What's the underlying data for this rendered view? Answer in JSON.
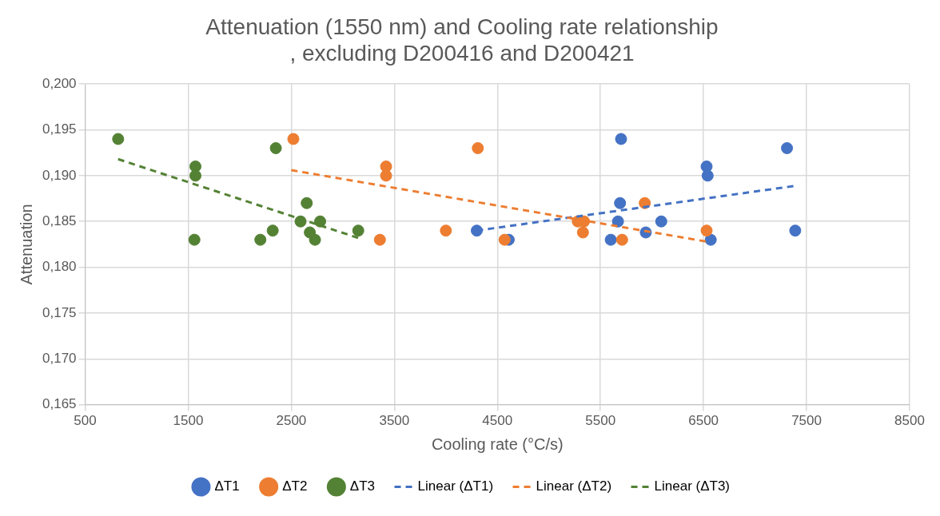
{
  "chart_data": {
    "type": "scatter",
    "title": "Attenuation (1550 nm) and Cooling rate relationship\n, excluding D200416 and D200421",
    "xlabel": "Cooling rate (°C/s)",
    "ylabel": "Attenuation",
    "xlim": [
      500,
      8500
    ],
    "xticks": [
      500,
      1500,
      2500,
      3500,
      4500,
      5500,
      6500,
      7500,
      8500
    ],
    "ylim": [
      0.165,
      0.2
    ],
    "yticks": [
      {
        "value": 0.165,
        "label": "0,165"
      },
      {
        "value": 0.17,
        "label": "0,170"
      },
      {
        "value": 0.175,
        "label": "0,175"
      },
      {
        "value": 0.18,
        "label": "0,180"
      },
      {
        "value": 0.185,
        "label": "0,185"
      },
      {
        "value": 0.19,
        "label": "0,190"
      },
      {
        "value": 0.195,
        "label": "0,195"
      },
      {
        "value": 0.2,
        "label": "0,200"
      }
    ],
    "grid": true,
    "legend": "bottom",
    "marker": "circle",
    "series": [
      {
        "name": "ΔT1",
        "color": "#4472c4",
        "x": [
          4300,
          4610,
          5600,
          5670,
          5690,
          5700,
          5940,
          6090,
          6530,
          6540,
          6570,
          7310,
          7390
        ],
        "values": [
          0.184,
          0.183,
          0.183,
          0.185,
          0.187,
          0.194,
          0.1838,
          0.185,
          0.191,
          0.19,
          0.183,
          0.193,
          0.184
        ]
      },
      {
        "name": "ΔT2",
        "color": "#ed7d31",
        "x": [
          2520,
          3360,
          3420,
          3420,
          4000,
          4310,
          4570,
          5280,
          5330,
          5340,
          5710,
          5930,
          6530
        ],
        "values": [
          0.194,
          0.183,
          0.191,
          0.19,
          0.184,
          0.193,
          0.183,
          0.185,
          0.1838,
          0.185,
          0.183,
          0.187,
          0.184
        ]
      },
      {
        "name": "ΔT3",
        "color": "#548235",
        "x": [
          820,
          1560,
          1570,
          1570,
          2200,
          2320,
          2350,
          2590,
          2650,
          2680,
          2730,
          2780,
          3150
        ],
        "values": [
          0.194,
          0.183,
          0.191,
          0.19,
          0.183,
          0.184,
          0.193,
          0.185,
          0.187,
          0.1838,
          0.183,
          0.185,
          0.184
        ]
      },
      {
        "name": "Linear (ΔT1)",
        "type": "line",
        "line_style": "dashed",
        "marker": "none",
        "color": "#4472c4",
        "x": [
          4300,
          7400
        ],
        "values": [
          0.184,
          0.1889
        ]
      },
      {
        "name": "Linear (ΔT2)",
        "type": "line",
        "line_style": "dashed",
        "marker": "none",
        "color": "#ed7d31",
        "x": [
          2500,
          6530
        ],
        "values": [
          0.1906,
          0.1828
        ]
      },
      {
        "name": "Linear (ΔT3)",
        "type": "line",
        "line_style": "dashed",
        "marker": "none",
        "color": "#548235",
        "x": [
          820,
          3150
        ],
        "values": [
          0.1918,
          0.1832
        ]
      }
    ]
  }
}
